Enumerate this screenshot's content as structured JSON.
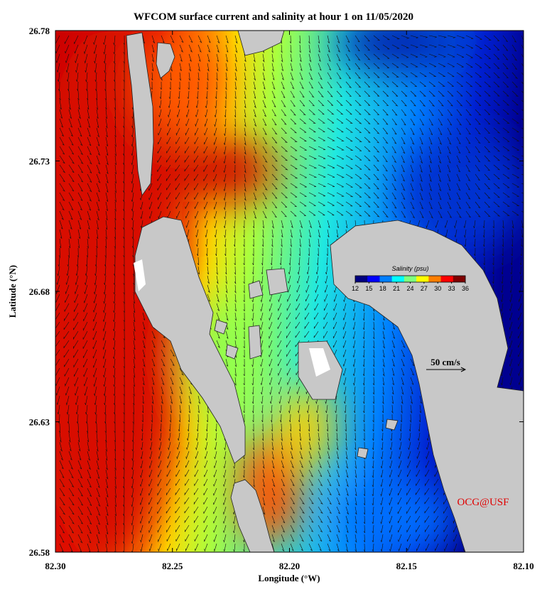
{
  "title": "WFCOM surface current and salinity at hour 1 on 11/05/2020",
  "x_axis": {
    "label": "Longitude (°W)",
    "lim": [
      82.3,
      82.1
    ],
    "ticks": [
      {
        "value": 82.3,
        "label": "82.30"
      },
      82.25,
      {
        "value": 82.2,
        "label": "82.20"
      },
      82.15,
      {
        "value": 82.1,
        "label": "82.10"
      }
    ]
  },
  "y_axis": {
    "label": "Latitude (°N)",
    "lim": [
      26.58,
      26.78
    ],
    "ticks": [
      26.58,
      26.63,
      26.68,
      26.73,
      26.78
    ]
  },
  "colorbar": {
    "title": "Salinity (psu)",
    "lim": [
      12,
      36
    ],
    "ticks": [
      12,
      15,
      18,
      21,
      24,
      27,
      30,
      33,
      36
    ],
    "colors": [
      "#00007f",
      "#0000ff",
      "#007fff",
      "#00ffff",
      "#7fff7f",
      "#ffff00",
      "#ff7f00",
      "#ff0000",
      "#7f0000"
    ]
  },
  "scale_label": "50 cm/s",
  "credit": "OCG@USF"
}
